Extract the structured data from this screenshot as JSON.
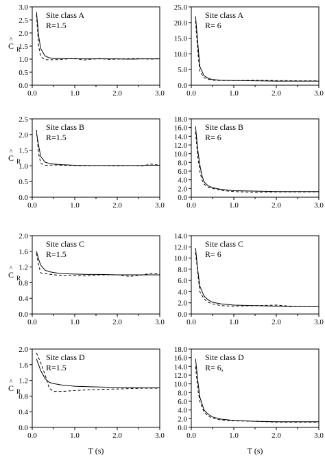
{
  "xlabel": "T (s)",
  "ylabel_main": "C",
  "ylabel_sub": "R",
  "ylabel_hat": "^",
  "chart_data": [
    {
      "type": "line",
      "site": "Site class A",
      "r": "R=1.5",
      "xlim": [
        0,
        3
      ],
      "ylim": [
        0,
        3
      ],
      "xticks": [
        "0.0",
        "1.0",
        "2.0",
        "3.0"
      ],
      "yticks": [
        "0.0",
        "0.5",
        "1.0",
        "1.5",
        "2.0",
        "2.5",
        "3.0"
      ],
      "x": [
        0.1,
        0.15,
        0.2,
        0.3,
        0.4,
        0.5,
        0.7,
        1.0,
        1.2,
        1.4,
        1.6,
        1.8,
        2.0,
        2.2,
        2.4,
        2.6,
        2.8,
        3.0
      ],
      "series": [
        {
          "values": [
            2.8,
            1.9,
            1.4,
            1.12,
            1.05,
            1.02,
            1.02,
            1.01,
            1.01,
            1.01,
            1.01,
            1.01,
            1.01,
            1.0,
            1.0,
            1.01,
            1.01,
            1.01
          ]
        },
        {
          "values": [
            2.7,
            1.5,
            1.1,
            0.98,
            0.97,
            0.98,
            0.99,
            1.03,
            0.96,
            1.0,
            1.02,
            0.99,
            1.0,
            1.01,
            1.02,
            1.01,
            1.0,
            1.01
          ]
        }
      ]
    },
    {
      "type": "line",
      "site": "Site class A",
      "r": "R= 6",
      "xlim": [
        0,
        3
      ],
      "ylim": [
        0,
        25
      ],
      "xticks": [
        "0.0",
        "1.0",
        "2.0",
        "3.0"
      ],
      "yticks": [
        "0.0",
        "5.0",
        "10.0",
        "15.0",
        "20.0",
        "25.0"
      ],
      "x": [
        0.1,
        0.15,
        0.2,
        0.3,
        0.4,
        0.5,
        0.7,
        1.0,
        1.5,
        2.0,
        2.5,
        3.0
      ],
      "series": [
        {
          "values": [
            22.0,
            14.0,
            6.0,
            3.0,
            2.2,
            1.8,
            1.6,
            1.5,
            1.4,
            1.3,
            1.3,
            1.3
          ]
        },
        {
          "values": [
            20.5,
            11.0,
            4.5,
            2.4,
            1.9,
            1.6,
            1.5,
            1.5,
            1.6,
            1.5,
            1.4,
            1.4
          ]
        }
      ]
    },
    {
      "type": "line",
      "site": "Site class B",
      "r": "R=1.5",
      "xlim": [
        0,
        3
      ],
      "ylim": [
        0,
        2.5
      ],
      "xticks": [
        "0.0",
        "1.0",
        "2.0",
        "3.0"
      ],
      "yticks": [
        "0.0",
        "0.5",
        "1.0",
        "1.5",
        "2.0",
        "2.5"
      ],
      "x": [
        0.1,
        0.15,
        0.2,
        0.3,
        0.4,
        0.5,
        0.7,
        1.0,
        1.2,
        1.5,
        2.0,
        2.3,
        2.6,
        2.8,
        3.0
      ],
      "series": [
        {
          "values": [
            2.05,
            1.65,
            1.3,
            1.12,
            1.08,
            1.06,
            1.04,
            1.02,
            1.01,
            1.01,
            1.01,
            1.01,
            1.01,
            1.02,
            1.02
          ]
        },
        {
          "values": [
            2.15,
            1.4,
            1.08,
            1.02,
            1.02,
            1.03,
            1.02,
            1.01,
            1.0,
            1.01,
            1.0,
            1.01,
            1.0,
            1.06,
            1.02
          ]
        }
      ]
    },
    {
      "type": "line",
      "site": "Site class B",
      "r": "R= 6",
      "xlim": [
        0,
        3
      ],
      "ylim": [
        0,
        18
      ],
      "xticks": [
        "0.0",
        "1.0",
        "2.0",
        "3.0"
      ],
      "yticks": [
        "0.0",
        "2.0",
        "4.0",
        "6.0",
        "8.0",
        "10.0",
        "12.0",
        "14.0",
        "16.0",
        "18.0"
      ],
      "x": [
        0.1,
        0.15,
        0.2,
        0.25,
        0.3,
        0.4,
        0.5,
        0.7,
        1.0,
        1.5,
        2.0,
        2.5,
        3.0
      ],
      "series": [
        {
          "values": [
            16.3,
            11.0,
            7.5,
            5.0,
            3.5,
            2.6,
            2.2,
            1.8,
            1.5,
            1.4,
            1.3,
            1.3,
            1.3
          ]
        },
        {
          "values": [
            15.0,
            9.5,
            6.0,
            4.0,
            3.0,
            2.3,
            2.0,
            1.6,
            1.3,
            1.1,
            1.2,
            1.2,
            1.2
          ]
        }
      ]
    },
    {
      "type": "line",
      "site": "Site class C",
      "r": "R=1.5",
      "xlim": [
        0,
        3
      ],
      "ylim": [
        0,
        2
      ],
      "xticks": [
        "0.0",
        "1.0",
        "2.0",
        "3.0"
      ],
      "yticks": [
        "0.0",
        "0.4",
        "0.8",
        "1.2",
        "1.6",
        "2.0"
      ],
      "x": [
        0.1,
        0.15,
        0.2,
        0.3,
        0.4,
        0.5,
        0.7,
        1.0,
        1.3,
        1.6,
        2.0,
        2.3,
        2.6,
        2.8,
        3.0
      ],
      "series": [
        {
          "values": [
            1.6,
            1.4,
            1.25,
            1.12,
            1.08,
            1.06,
            1.03,
            1.02,
            1.01,
            1.01,
            1.0,
            1.0,
            1.0,
            1.0,
            1.0
          ]
        },
        {
          "values": [
            1.55,
            1.25,
            1.05,
            1.03,
            1.02,
            1.0,
            0.99,
            0.98,
            0.97,
            1.0,
            1.0,
            0.96,
            1.0,
            1.04,
            1.02
          ]
        }
      ]
    },
    {
      "type": "line",
      "site": "Site class C",
      "r": "R= 6",
      "xlim": [
        0,
        3
      ],
      "ylim": [
        0,
        14
      ],
      "xticks": [
        "0.0",
        "1.0",
        "2.0",
        "3.0"
      ],
      "yticks": [
        "0.0",
        "2.0",
        "4.0",
        "6.0",
        "8.0",
        "10.0",
        "12.0",
        "14.0"
      ],
      "x": [
        0.1,
        0.15,
        0.2,
        0.3,
        0.4,
        0.5,
        0.7,
        1.0,
        1.5,
        2.0,
        2.5,
        3.0
      ],
      "series": [
        {
          "values": [
            11.8,
            8.0,
            5.0,
            3.2,
            2.5,
            2.1,
            1.8,
            1.6,
            1.5,
            1.4,
            1.3,
            1.3
          ]
        },
        {
          "values": [
            11.0,
            7.5,
            4.0,
            2.7,
            2.1,
            1.8,
            1.5,
            1.4,
            1.5,
            1.6,
            1.3,
            1.3
          ]
        }
      ]
    },
    {
      "type": "line",
      "site": "Site class D",
      "r": "R=1.5",
      "xlim": [
        0,
        3
      ],
      "ylim": [
        0,
        2
      ],
      "xticks": [
        "0.0",
        "1.0",
        "2.0",
        "3.0"
      ],
      "yticks": [
        "0.0",
        "0.4",
        "0.8",
        "1.2",
        "1.6",
        "2.0"
      ],
      "x": [
        0.1,
        0.2,
        0.3,
        0.4,
        0.5,
        0.7,
        1.0,
        1.3,
        1.6,
        2.0,
        2.3,
        2.6,
        3.0
      ],
      "series": [
        {
          "values": [
            1.75,
            1.45,
            1.25,
            1.15,
            1.12,
            1.08,
            1.05,
            1.04,
            1.03,
            1.02,
            1.02,
            1.01,
            1.01
          ]
        },
        {
          "values": [
            1.9,
            1.65,
            1.35,
            1.0,
            0.92,
            0.92,
            0.94,
            0.96,
            0.97,
            0.98,
            0.99,
            1.0,
            1.0
          ]
        }
      ]
    },
    {
      "type": "line",
      "site": "Site class D",
      "r": "R= 6,",
      "xlim": [
        0,
        3
      ],
      "ylim": [
        0,
        18
      ],
      "xticks": [
        "0.0",
        "1.0",
        "2.0",
        "3.0"
      ],
      "yticks": [
        "0.0",
        "2.0",
        "4.0",
        "6.0",
        "8.0",
        "10.0",
        "12.0",
        "14.0",
        "16.0",
        "18.0"
      ],
      "x": [
        0.1,
        0.15,
        0.2,
        0.3,
        0.4,
        0.5,
        0.7,
        1.0,
        1.5,
        2.0,
        2.5,
        3.0
      ],
      "series": [
        {
          "values": [
            15.8,
            11.0,
            7.0,
            4.0,
            3.0,
            2.4,
            1.9,
            1.6,
            1.4,
            1.3,
            1.3,
            1.3
          ]
        },
        {
          "values": [
            14.0,
            9.0,
            6.0,
            3.5,
            2.6,
            2.1,
            1.7,
            1.5,
            1.4,
            1.2,
            1.2,
            1.2
          ]
        }
      ]
    }
  ]
}
